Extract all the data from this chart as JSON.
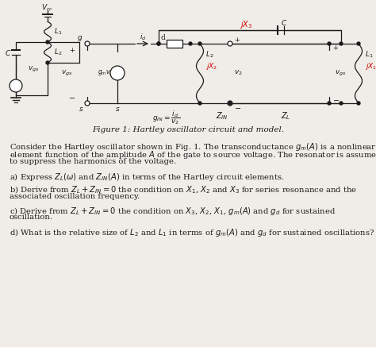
{
  "background_color": "#f0ede8",
  "fig_width": 4.74,
  "fig_height": 4.37,
  "dpi": 100,
  "black": "#1a1a1a",
  "red": "#cc0000",
  "caption": "Figure 1: Hartley oscillator circuit and model.",
  "para0_lines": [
    "Consider the Hartley oscillator shown in Fig. 1. The transconductance $g_m(A)$ is a nonlinear",
    "element function of the amplitude $A$ of the gate to source voltage. The resonator is assumed",
    "to suppress the harmonics of the voltage."
  ],
  "para_a": "a) Express $Z_L(\\omega)$ and $Z_{IN}(A)$ in terms of the Hartley circuit elements.",
  "para_b_lines": [
    "b) Derive from $Z_L + Z_{IN} = 0$ the condition on $X_1$, $X_2$ and $X_3$ for series resonance and the",
    "associated oscillation frequency."
  ],
  "para_c_lines": [
    "c) Derive from $Z_L + Z_{IN} = 0$ the condition on $X_3$, $X_2$, $X_1$, $g_m(A)$ and $g_d$ for sustained",
    "oscillation."
  ],
  "para_d": "d) What is the relative size of $L_2$ and $L_1$ in terms of $g_m(A)$ and $g_d$ for sustained oscillations?"
}
